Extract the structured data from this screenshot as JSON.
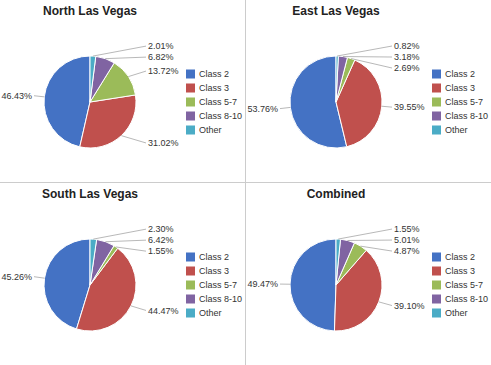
{
  "chart_data": [
    {
      "type": "pie",
      "title": "North Las Vegas",
      "categories": [
        "Class 2",
        "Class 3",
        "Class 5-7",
        "Class 8-10",
        "Other"
      ],
      "values": [
        46.43,
        31.02,
        13.72,
        6.82,
        2.01
      ],
      "value_labels": [
        "46.43%",
        "31.02%",
        "13.72%",
        "6.82%",
        "2.01%"
      ],
      "colors": [
        "#4472C4",
        "#C0504D",
        "#9BBB59",
        "#8064A2",
        "#4BACC6"
      ],
      "data_labels": true,
      "legend": "right"
    },
    {
      "type": "pie",
      "title": "East Las Vegas",
      "categories": [
        "Class 2",
        "Class 3",
        "Class 5-7",
        "Class 8-10",
        "Other"
      ],
      "values": [
        53.76,
        39.55,
        2.69,
        3.18,
        0.82
      ],
      "value_labels": [
        "53.76%",
        "39.55%",
        "2.69%",
        "3.18%",
        "0.82%"
      ],
      "colors": [
        "#4472C4",
        "#C0504D",
        "#9BBB59",
        "#8064A2",
        "#4BACC6"
      ],
      "data_labels": true,
      "legend": "right"
    },
    {
      "type": "pie",
      "title": "South Las Vegas",
      "categories": [
        "Class 2",
        "Class 3",
        "Class 5-7",
        "Class 8-10",
        "Other"
      ],
      "values": [
        45.26,
        44.47,
        1.55,
        6.42,
        2.3
      ],
      "value_labels": [
        "45.26%",
        "44.47%",
        "1.55%",
        "6.42%",
        "2.30%"
      ],
      "colors": [
        "#4472C4",
        "#C0504D",
        "#9BBB59",
        "#8064A2",
        "#4BACC6"
      ],
      "data_labels": true,
      "legend": "right"
    },
    {
      "type": "pie",
      "title": "Combined",
      "categories": [
        "Class 2",
        "Class 3",
        "Class 5-7",
        "Class 8-10",
        "Other"
      ],
      "values": [
        49.47,
        39.1,
        4.87,
        5.01,
        1.55
      ],
      "value_labels": [
        "49.47%",
        "39.10%",
        "4.87%",
        "5.01%",
        "1.55%"
      ],
      "colors": [
        "#4472C4",
        "#C0504D",
        "#9BBB59",
        "#8064A2",
        "#4BACC6"
      ],
      "data_labels": true,
      "legend": "right"
    }
  ]
}
